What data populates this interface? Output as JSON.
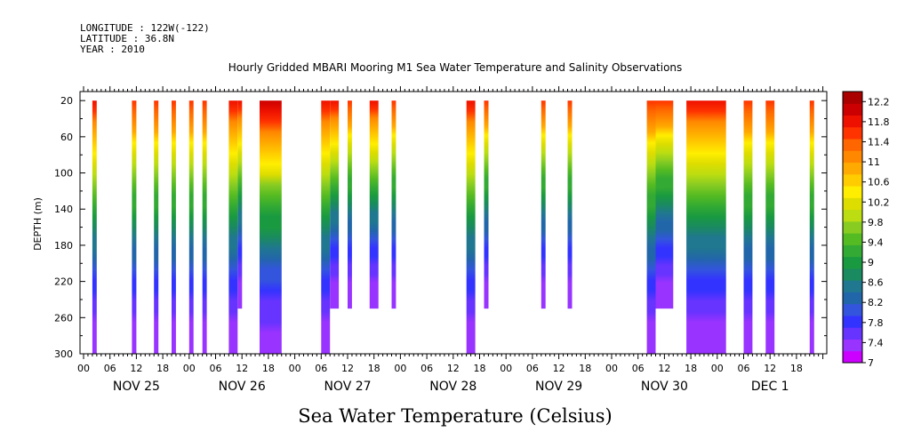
{
  "header": {
    "longitude": "LONGITUDE : 122W(-122)",
    "latitude": "LATITUDE : 36.8N",
    "year": "YEAR : 2010"
  },
  "chart_data": {
    "type": "heatmap",
    "title": "Hourly Gridded MBARI Mooring M1 Sea Water Temperature and Salinity Observations",
    "xlabel": "Sea Water Temperature (Celsius)",
    "ylabel": "DEPTH (m)",
    "ylim": [
      300,
      10
    ],
    "y_ticks": [
      "20",
      "60",
      "100",
      "140",
      "180",
      "220",
      "260",
      "300"
    ],
    "x_hour_ticks": [
      "00",
      "06",
      "12",
      "18"
    ],
    "day_labels": [
      "NOV 25",
      "NOV 26",
      "NOV 27",
      "NOV 28",
      "NOV 29",
      "NOV 30",
      "DEC  1"
    ],
    "colorbar": {
      "min": 7.0,
      "max": 12.4,
      "tick_labels": [
        "12.2",
        "11.8",
        "11.4",
        "11",
        "10.6",
        "10.2",
        "9.8",
        "9.4",
        "9",
        "8.6",
        "8.2",
        "7.8",
        "7.4",
        "7"
      ],
      "colors": [
        "#cc00ff",
        "#9933ff",
        "#6633ff",
        "#3333ff",
        "#3355dd",
        "#2266aa",
        "#207790",
        "#1a8a60",
        "#1a9a40",
        "#33aa33",
        "#55bb22",
        "#88cc22",
        "#bbdd11",
        "#dddd00",
        "#ffee00",
        "#ffcc00",
        "#ffaa00",
        "#ff8800",
        "#ff6600",
        "#ff3300",
        "#ee1100",
        "#cc0000",
        "#aa0000"
      ]
    },
    "observations": [
      {
        "start_hour": 2,
        "end_hour": 3,
        "depth_bottom": 300,
        "surface_temp": 11.8
      },
      {
        "start_hour": 11,
        "end_hour": 12,
        "depth_bottom": 300,
        "surface_temp": 11.6
      },
      {
        "start_hour": 16,
        "end_hour": 17,
        "depth_bottom": 300,
        "surface_temp": 11.6
      },
      {
        "start_hour": 20,
        "end_hour": 21,
        "depth_bottom": 300,
        "surface_temp": 11.6
      },
      {
        "start_hour": 24,
        "end_hour": 25,
        "depth_bottom": 300,
        "surface_temp": 11.6
      },
      {
        "start_hour": 27,
        "end_hour": 28,
        "depth_bottom": 300,
        "surface_temp": 11.6
      },
      {
        "start_hour": 33,
        "end_hour": 35,
        "depth_bottom": 300,
        "surface_temp": 11.8
      },
      {
        "start_hour": 35,
        "end_hour": 36,
        "depth_bottom": 250,
        "surface_temp": 11.8
      },
      {
        "start_hour": 40,
        "end_hour": 45,
        "depth_bottom": 300,
        "surface_temp": 12.1
      },
      {
        "start_hour": 54,
        "end_hour": 56,
        "depth_bottom": 300,
        "surface_temp": 11.8
      },
      {
        "start_hour": 56,
        "end_hour": 58,
        "depth_bottom": 250,
        "surface_temp": 11.8
      },
      {
        "start_hour": 60,
        "end_hour": 61,
        "depth_bottom": 250,
        "surface_temp": 11.6
      },
      {
        "start_hour": 65,
        "end_hour": 67,
        "depth_bottom": 250,
        "surface_temp": 11.8
      },
      {
        "start_hour": 70,
        "end_hour": 71,
        "depth_bottom": 250,
        "surface_temp": 11.6
      },
      {
        "start_hour": 87,
        "end_hour": 89,
        "depth_bottom": 300,
        "surface_temp": 11.8
      },
      {
        "start_hour": 91,
        "end_hour": 92,
        "depth_bottom": 250,
        "surface_temp": 11.6
      },
      {
        "start_hour": 104,
        "end_hour": 105,
        "depth_bottom": 250,
        "surface_temp": 11.6
      },
      {
        "start_hour": 110,
        "end_hour": 111,
        "depth_bottom": 250,
        "surface_temp": 11.6
      },
      {
        "start_hour": 128,
        "end_hour": 130,
        "depth_bottom": 300,
        "surface_temp": 11.6
      },
      {
        "start_hour": 130,
        "end_hour": 134,
        "depth_bottom": 250,
        "surface_temp": 11.6
      },
      {
        "start_hour": 137,
        "end_hour": 146,
        "depth_bottom": 300,
        "surface_temp": 11.8
      },
      {
        "start_hour": 150,
        "end_hour": 152,
        "depth_bottom": 300,
        "surface_temp": 11.6
      },
      {
        "start_hour": 155,
        "end_hour": 157,
        "depth_bottom": 300,
        "surface_temp": 11.6
      },
      {
        "start_hour": 165,
        "end_hour": 166,
        "depth_bottom": 300,
        "surface_temp": 11.6
      }
    ],
    "bottom_temp": 7.3
  }
}
